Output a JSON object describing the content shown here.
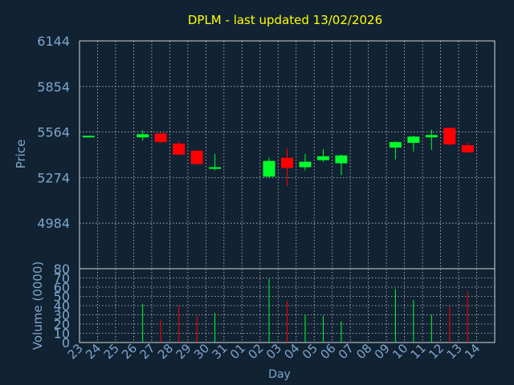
{
  "title": "DPLM - last updated 13/02/2026",
  "colors": {
    "background": "#112233",
    "frame": "#d8d8d8",
    "grid": "#c8c8c8",
    "title": "#ffff00",
    "axis_text": "#7fa7cc",
    "up": "#00ff2a",
    "down": "#ff0000"
  },
  "chart_data": [
    {
      "type": "candlestick",
      "title": "DPLM - last updated 13/02/2026",
      "ylabel": "Price",
      "ylim": [
        4694,
        6144
      ],
      "yticks": [
        "6144",
        "5854",
        "5564",
        "5274",
        "4984"
      ],
      "ytick_values": [
        6144,
        5854,
        5564,
        5274,
        4984
      ],
      "grid": true,
      "x_days": [
        "23",
        "24",
        "25",
        "26",
        "27",
        "28",
        "29",
        "30",
        "31",
        "01",
        "02",
        "03",
        "04",
        "05",
        "06",
        "07",
        "08",
        "09",
        "10",
        "11",
        "12",
        "13",
        "14"
      ],
      "candles": [
        {
          "day": "23",
          "open": 5540,
          "close": 5540,
          "high": 5540,
          "low": 5540
        },
        {
          "day": "26",
          "open": 5530,
          "close": 5550,
          "high": 5575,
          "low": 5510
        },
        {
          "day": "27",
          "open": 5555,
          "close": 5500,
          "high": 5562,
          "low": 5498
        },
        {
          "day": "28",
          "open": 5490,
          "close": 5420,
          "high": 5510,
          "low": 5415
        },
        {
          "day": "29",
          "open": 5445,
          "close": 5360,
          "high": 5450,
          "low": 5355
        },
        {
          "day": "30",
          "open": 5330,
          "close": 5340,
          "high": 5425,
          "low": 5320
        },
        {
          "day": "02",
          "open": 5280,
          "close": 5380,
          "high": 5400,
          "low": 5275
        },
        {
          "day": "03",
          "open": 5400,
          "close": 5335,
          "high": 5460,
          "low": 5220
        },
        {
          "day": "04",
          "open": 5340,
          "close": 5375,
          "high": 5425,
          "low": 5320
        },
        {
          "day": "05",
          "open": 5385,
          "close": 5410,
          "high": 5455,
          "low": 5375
        },
        {
          "day": "06",
          "open": 5365,
          "close": 5415,
          "high": 5420,
          "low": 5290
        },
        {
          "day": "09",
          "open": 5465,
          "close": 5500,
          "high": 5505,
          "low": 5390
        },
        {
          "day": "10",
          "open": 5495,
          "close": 5535,
          "high": 5540,
          "low": 5440
        },
        {
          "day": "11",
          "open": 5530,
          "close": 5545,
          "high": 5580,
          "low": 5450
        },
        {
          "day": "12",
          "open": 5590,
          "close": 5485,
          "high": 5592,
          "low": 5480
        },
        {
          "day": "13",
          "open": 5480,
          "close": 5435,
          "high": 5500,
          "low": 5430
        }
      ]
    },
    {
      "type": "bar",
      "ylabel": "Volume (0000)",
      "xlabel": "Day",
      "ylim": [
        0,
        80
      ],
      "yticks": [
        "80",
        "70",
        "60",
        "50",
        "40",
        "30",
        "20",
        "10",
        "0"
      ],
      "ytick_values": [
        80,
        70,
        60,
        50,
        40,
        30,
        20,
        10,
        0
      ],
      "x_days": [
        "23",
        "24",
        "25",
        "26",
        "27",
        "28",
        "29",
        "30",
        "31",
        "01",
        "02",
        "03",
        "04",
        "05",
        "06",
        "07",
        "08",
        "09",
        "10",
        "11",
        "12",
        "13",
        "14"
      ],
      "bars": [
        {
          "day": "26",
          "value": 42,
          "dir": "up"
        },
        {
          "day": "27",
          "value": 25,
          "dir": "down"
        },
        {
          "day": "28",
          "value": 40,
          "dir": "down"
        },
        {
          "day": "29",
          "value": 29,
          "dir": "down"
        },
        {
          "day": "30",
          "value": 32,
          "dir": "up"
        },
        {
          "day": "02",
          "value": 69,
          "dir": "up"
        },
        {
          "day": "03",
          "value": 45,
          "dir": "down"
        },
        {
          "day": "04",
          "value": 30,
          "dir": "up"
        },
        {
          "day": "05",
          "value": 29,
          "dir": "up"
        },
        {
          "day": "06",
          "value": 23,
          "dir": "up"
        },
        {
          "day": "09",
          "value": 58,
          "dir": "up"
        },
        {
          "day": "10",
          "value": 46,
          "dir": "up"
        },
        {
          "day": "11",
          "value": 30,
          "dir": "up"
        },
        {
          "day": "12",
          "value": 39,
          "dir": "down"
        },
        {
          "day": "13",
          "value": 56,
          "dir": "down"
        }
      ]
    }
  ]
}
